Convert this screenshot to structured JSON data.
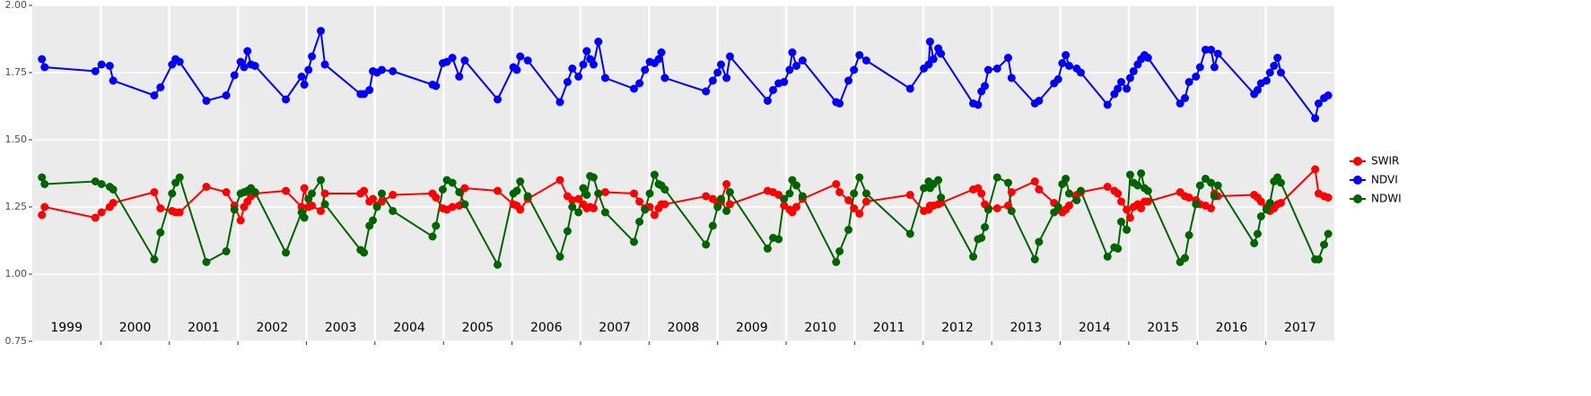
{
  "chart_data": {
    "type": "line",
    "x": [
      1999.14,
      1999.18,
      1999.92,
      2000.01,
      2000.13,
      2000.18,
      2000.78,
      2000.87,
      2001.04,
      2001.09,
      2001.15,
      2001.54,
      2001.83,
      2001.95,
      2002.04,
      2002.09,
      2002.14,
      2002.19,
      2002.25,
      2002.7,
      2002.93,
      2002.97,
      2003.03,
      2003.08,
      2003.21,
      2003.27,
      2003.79,
      2003.84,
      2003.92,
      2003.97,
      2004.03,
      2004.1,
      2004.26,
      2004.84,
      2004.89,
      2004.99,
      2005.05,
      2005.13,
      2005.23,
      2005.31,
      2005.79,
      2006.02,
      2006.07,
      2006.12,
      2006.23,
      2006.7,
      2006.81,
      2006.88,
      2006.97,
      2007.04,
      2007.09,
      2007.14,
      2007.19,
      2007.26,
      2007.36,
      2007.78,
      2007.86,
      2007.94,
      2008.01,
      2008.08,
      2008.14,
      2008.18,
      2008.23,
      2008.83,
      2008.93,
      2009.0,
      2009.05,
      2009.13,
      2009.18,
      2009.73,
      2009.81,
      2009.89,
      2009.97,
      2010.05,
      2010.09,
      2010.15,
      2010.24,
      2010.73,
      2010.78,
      2010.91,
      2010.99,
      2011.07,
      2011.17,
      2011.81,
      2012.01,
      2012.08,
      2012.1,
      2012.15,
      2012.22,
      2012.26,
      2012.73,
      2012.8,
      2012.85,
      2012.9,
      2012.95,
      2013.08,
      2013.24,
      2013.29,
      2013.63,
      2013.69,
      2013.91,
      2013.97,
      2014.03,
      2014.08,
      2014.13,
      2014.24,
      2014.3,
      2014.69,
      2014.79,
      2014.84,
      2014.89,
      2014.97,
      2015.02,
      2015.07,
      2015.13,
      2015.18,
      2015.23,
      2015.28,
      2015.75,
      2015.82,
      2015.88,
      2015.98,
      2016.04,
      2016.12,
      2016.2,
      2016.25,
      2016.3,
      2016.83,
      2016.88,
      2016.93,
      2017.01,
      2017.06,
      2017.12,
      2017.17,
      2017.22,
      2017.72,
      2017.77,
      2017.85,
      2017.91
    ],
    "series": [
      {
        "name": "SWIR",
        "color": "#ff0000",
        "values": [
          1.22,
          1.25,
          1.21,
          1.23,
          1.25,
          1.265,
          1.305,
          1.245,
          1.235,
          1.23,
          1.23,
          1.325,
          1.305,
          1.255,
          1.2,
          1.25,
          1.27,
          1.29,
          1.3,
          1.31,
          1.25,
          1.32,
          1.25,
          1.255,
          1.235,
          1.3,
          1.3,
          1.31,
          1.27,
          1.28,
          1.255,
          1.27,
          1.295,
          1.3,
          1.285,
          1.245,
          1.24,
          1.25,
          1.255,
          1.32,
          1.31,
          1.26,
          1.255,
          1.24,
          1.28,
          1.35,
          1.29,
          1.275,
          1.28,
          1.26,
          1.245,
          1.25,
          1.245,
          1.3,
          1.305,
          1.3,
          1.27,
          1.245,
          1.25,
          1.22,
          1.245,
          1.26,
          1.26,
          1.29,
          1.28,
          1.265,
          1.27,
          1.335,
          1.26,
          1.31,
          1.305,
          1.295,
          1.255,
          1.24,
          1.23,
          1.25,
          1.28,
          1.335,
          1.305,
          1.275,
          1.245,
          1.225,
          1.27,
          1.295,
          1.235,
          1.24,
          1.255,
          1.255,
          1.26,
          1.265,
          1.315,
          1.32,
          1.3,
          1.26,
          1.245,
          1.245,
          1.255,
          1.305,
          1.345,
          1.315,
          1.265,
          1.24,
          1.23,
          1.24,
          1.255,
          1.295,
          1.305,
          1.325,
          1.31,
          1.3,
          1.27,
          1.24,
          1.21,
          1.25,
          1.26,
          1.245,
          1.27,
          1.27,
          1.305,
          1.29,
          1.285,
          1.275,
          1.26,
          1.255,
          1.245,
          1.3,
          1.29,
          1.295,
          1.285,
          1.27,
          1.25,
          1.235,
          1.245,
          1.26,
          1.265,
          1.39,
          1.3,
          1.29,
          1.285
        ]
      },
      {
        "name": "NDVI",
        "color": "#0000ff",
        "values": [
          1.8,
          1.77,
          1.755,
          1.78,
          1.775,
          1.72,
          1.665,
          1.695,
          1.78,
          1.8,
          1.79,
          1.645,
          1.665,
          1.74,
          1.79,
          1.77,
          1.83,
          1.78,
          1.775,
          1.65,
          1.735,
          1.705,
          1.76,
          1.81,
          1.905,
          1.78,
          1.67,
          1.67,
          1.685,
          1.755,
          1.75,
          1.76,
          1.755,
          1.705,
          1.7,
          1.785,
          1.79,
          1.805,
          1.735,
          1.795,
          1.65,
          1.77,
          1.76,
          1.81,
          1.795,
          1.64,
          1.715,
          1.765,
          1.735,
          1.78,
          1.83,
          1.8,
          1.78,
          1.865,
          1.73,
          1.69,
          1.71,
          1.76,
          1.79,
          1.785,
          1.8,
          1.825,
          1.73,
          1.68,
          1.72,
          1.75,
          1.78,
          1.73,
          1.81,
          1.645,
          1.685,
          1.71,
          1.715,
          1.76,
          1.825,
          1.775,
          1.795,
          1.64,
          1.635,
          1.72,
          1.76,
          1.815,
          1.795,
          1.69,
          1.765,
          1.78,
          1.865,
          1.8,
          1.84,
          1.82,
          1.635,
          1.63,
          1.68,
          1.7,
          1.76,
          1.765,
          1.805,
          1.73,
          1.635,
          1.645,
          1.71,
          1.725,
          1.785,
          1.815,
          1.775,
          1.765,
          1.75,
          1.63,
          1.67,
          1.69,
          1.715,
          1.69,
          1.73,
          1.755,
          1.78,
          1.8,
          1.815,
          1.805,
          1.635,
          1.655,
          1.715,
          1.735,
          1.77,
          1.835,
          1.835,
          1.77,
          1.82,
          1.67,
          1.685,
          1.71,
          1.72,
          1.75,
          1.775,
          1.805,
          1.75,
          1.58,
          1.635,
          1.655,
          1.665
        ]
      },
      {
        "name": "NDWI",
        "color": "#006400",
        "values": [
          1.36,
          1.335,
          1.345,
          1.335,
          1.325,
          1.315,
          1.055,
          1.155,
          1.3,
          1.34,
          1.36,
          1.045,
          1.085,
          1.24,
          1.3,
          1.305,
          1.31,
          1.32,
          1.305,
          1.08,
          1.23,
          1.21,
          1.28,
          1.3,
          1.35,
          1.26,
          1.09,
          1.08,
          1.18,
          1.2,
          1.25,
          1.3,
          1.235,
          1.14,
          1.18,
          1.315,
          1.35,
          1.34,
          1.305,
          1.26,
          1.035,
          1.3,
          1.31,
          1.345,
          1.29,
          1.065,
          1.16,
          1.25,
          1.23,
          1.32,
          1.295,
          1.365,
          1.36,
          1.3,
          1.23,
          1.12,
          1.195,
          1.24,
          1.3,
          1.37,
          1.335,
          1.33,
          1.315,
          1.11,
          1.18,
          1.25,
          1.28,
          1.235,
          1.305,
          1.095,
          1.135,
          1.13,
          1.28,
          1.3,
          1.35,
          1.33,
          1.29,
          1.045,
          1.085,
          1.165,
          1.3,
          1.36,
          1.3,
          1.15,
          1.32,
          1.345,
          1.32,
          1.335,
          1.35,
          1.285,
          1.065,
          1.13,
          1.135,
          1.175,
          1.24,
          1.36,
          1.34,
          1.235,
          1.055,
          1.12,
          1.23,
          1.25,
          1.335,
          1.355,
          1.3,
          1.275,
          1.31,
          1.065,
          1.1,
          1.095,
          1.195,
          1.165,
          1.37,
          1.34,
          1.33,
          1.375,
          1.32,
          1.31,
          1.045,
          1.06,
          1.145,
          1.26,
          1.33,
          1.355,
          1.34,
          1.29,
          1.33,
          1.115,
          1.15,
          1.215,
          1.24,
          1.265,
          1.345,
          1.36,
          1.34,
          1.055,
          1.055,
          1.11,
          1.15
        ]
      }
    ],
    "xlim": [
      1999.0,
      2018.0
    ],
    "xticks": [
      2000,
      2001,
      2002,
      2003,
      2004,
      2005,
      2006,
      2007,
      2008,
      2009,
      2010,
      2011,
      2012,
      2013,
      2014,
      2015,
      2016,
      2017
    ],
    "year_labels": [
      {
        "value": 1999.5,
        "label": "1999"
      },
      {
        "value": 2000.5,
        "label": "2000"
      },
      {
        "value": 2001.5,
        "label": "2001"
      },
      {
        "value": 2002.5,
        "label": "2002"
      },
      {
        "value": 2003.5,
        "label": "2003"
      },
      {
        "value": 2004.5,
        "label": "2004"
      },
      {
        "value": 2005.5,
        "label": "2005"
      },
      {
        "value": 2006.5,
        "label": "2006"
      },
      {
        "value": 2007.5,
        "label": "2007"
      },
      {
        "value": 2008.5,
        "label": "2008"
      },
      {
        "value": 2009.5,
        "label": "2009"
      },
      {
        "value": 2010.5,
        "label": "2010"
      },
      {
        "value": 2011.5,
        "label": "2011"
      },
      {
        "value": 2012.5,
        "label": "2012"
      },
      {
        "value": 2013.5,
        "label": "2013"
      },
      {
        "value": 2014.5,
        "label": "2014"
      },
      {
        "value": 2015.5,
        "label": "2015"
      },
      {
        "value": 2016.5,
        "label": "2016"
      },
      {
        "value": 2017.5,
        "label": "2017"
      }
    ],
    "ylim": [
      0.75,
      2.0
    ],
    "yticks": [
      0.75,
      {
        "value": 1,
        "label": "1.00"
      },
      1.25,
      {
        "value": 1.5,
        "label": "1.50"
      },
      1.75,
      {
        "value": 2,
        "label": "2.00"
      }
    ],
    "grid": true,
    "legend_position": "right"
  }
}
